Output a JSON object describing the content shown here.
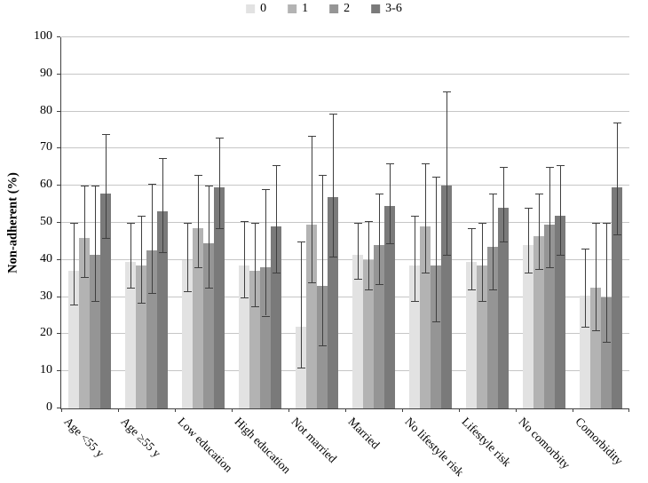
{
  "figure": {
    "y_axis_title": "Non-adherent (%)"
  },
  "chart_data": {
    "type": "bar",
    "title": "",
    "xlabel": "",
    "ylabel": "Non-adherent (%)",
    "ylim": [
      0,
      100
    ],
    "y_ticks": [
      0,
      10,
      20,
      30,
      40,
      50,
      60,
      70,
      80,
      90,
      100
    ],
    "grid": true,
    "legend_position": "top-center",
    "error_bars": true,
    "axis_color": "#404040",
    "gridline_color": "#c6c6c6",
    "error_bar_color": "#3f3f3f",
    "categories": [
      "Age <55 y",
      "Age ≥55 y",
      "Low education",
      "High education",
      "Not married",
      "Married",
      "No lifestyle risk",
      "Lifestyle risk",
      "No comorbity",
      "Comorbidity"
    ],
    "series": [
      {
        "name": "0",
        "color": "#e2e2e2",
        "values": [
          37,
          39.5,
          40,
          38.5,
          22,
          41.5,
          38.5,
          39.5,
          44,
          30.5
        ],
        "ci_low": [
          28,
          32.5,
          31.5,
          30,
          11,
          35,
          29,
          32,
          36.5,
          22
        ],
        "ci_high": [
          50,
          50,
          50,
          50.5,
          45,
          50,
          52,
          48.5,
          54,
          43
        ]
      },
      {
        "name": "1",
        "color": "#b3b3b3",
        "values": [
          46,
          38.5,
          48.5,
          37,
          49.5,
          40,
          49,
          38.5,
          46.5,
          32.5
        ],
        "ci_low": [
          35.5,
          28.5,
          38,
          27.5,
          34,
          32,
          36.5,
          29,
          37.5,
          21
        ],
        "ci_high": [
          60,
          52,
          63,
          50,
          73.5,
          50.5,
          66,
          50,
          58,
          50
        ]
      },
      {
        "name": "2",
        "color": "#959595",
        "values": [
          41.5,
          42.5,
          44.5,
          38,
          33,
          44,
          38.5,
          43.5,
          49.5,
          30
        ],
        "ci_low": [
          29,
          31,
          32.5,
          25,
          17,
          33.5,
          23.5,
          32,
          38,
          18
        ],
        "ci_high": [
          60,
          60.5,
          60,
          59,
          63,
          58,
          62.5,
          58,
          65,
          50
        ]
      },
      {
        "name": "3-6",
        "color": "#7a7a7a",
        "values": [
          58,
          53,
          59.5,
          49,
          57,
          54.5,
          60,
          54,
          52,
          59.5
        ],
        "ci_low": [
          46,
          42,
          48.5,
          36.5,
          41,
          44.5,
          41.5,
          45,
          41.5,
          47
        ],
        "ci_high": [
          74,
          67.5,
          73,
          65.5,
          79.5,
          66,
          85.5,
          65,
          65.5,
          77
        ]
      }
    ]
  }
}
